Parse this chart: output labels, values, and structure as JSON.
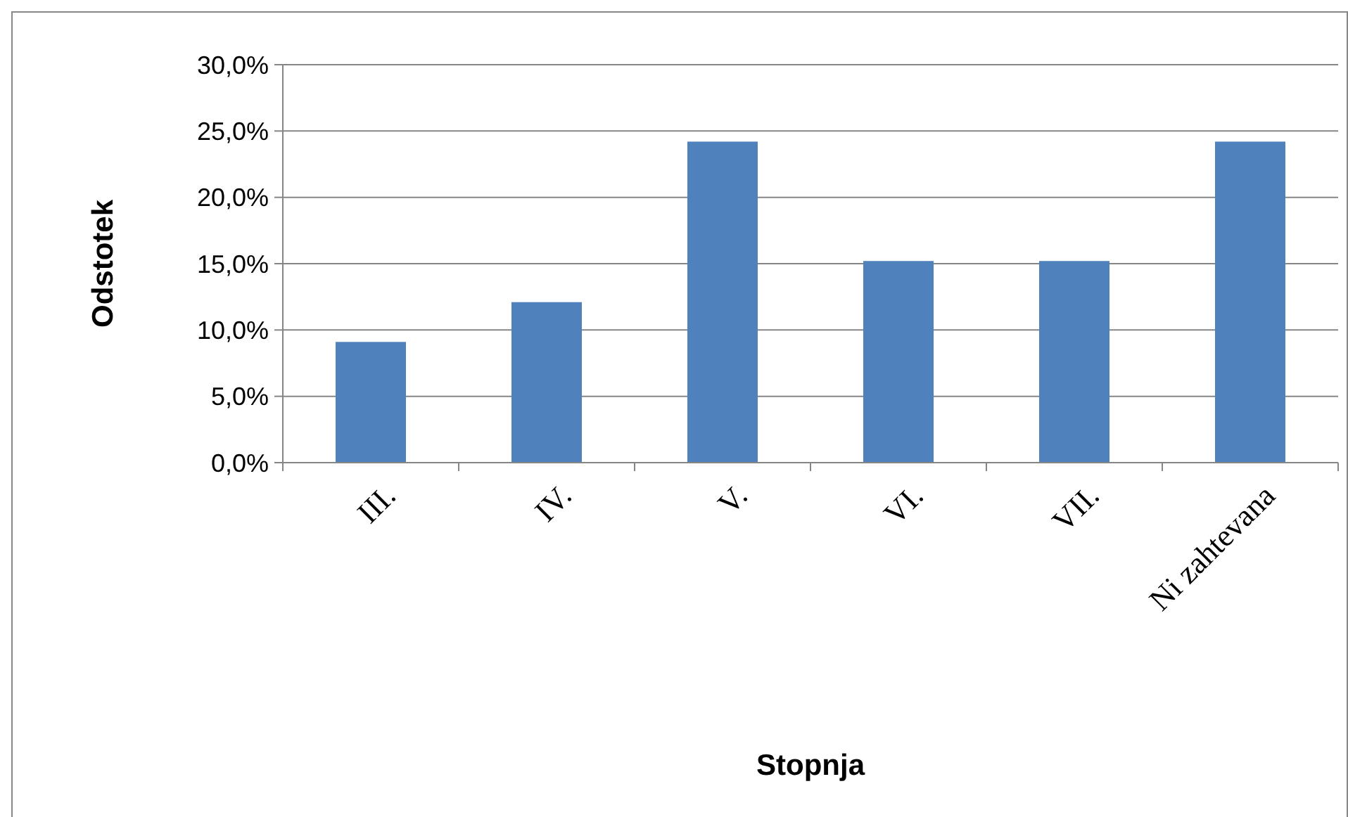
{
  "chart_data": {
    "type": "bar",
    "xlabel": "Stopnja",
    "ylabel": "Odstotek",
    "categories": [
      "III.",
      "IV.",
      "V.",
      "VI.",
      "VII.",
      "Ni zahtevana"
    ],
    "values": [
      9.1,
      12.1,
      24.2,
      15.2,
      15.2,
      24.2
    ],
    "color": "#4f81bd",
    "ylim": [
      0,
      30
    ],
    "yticks": [
      {
        "value": 0,
        "label": "0,0%"
      },
      {
        "value": 5,
        "label": "5,0%"
      },
      {
        "value": 10,
        "label": "10,0%"
      },
      {
        "value": 15,
        "label": "15,0%"
      },
      {
        "value": 20,
        "label": "20,0%"
      },
      {
        "value": 25,
        "label": "25,0%"
      },
      {
        "value": 30,
        "label": "30,0%"
      }
    ],
    "grid": "y"
  }
}
